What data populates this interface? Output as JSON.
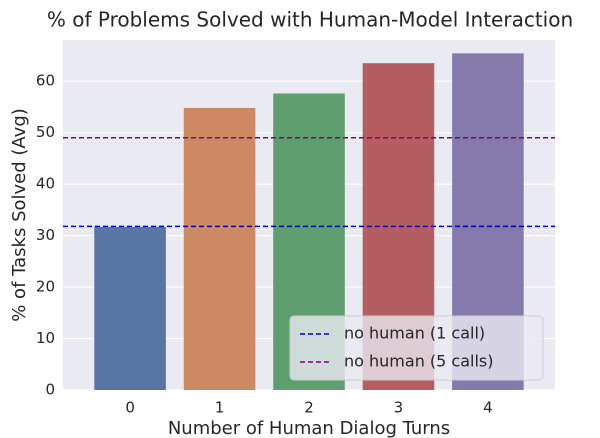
{
  "chart_data": {
    "type": "bar",
    "title": "% of Problems Solved with Human-Model Interaction",
    "xlabel": "Number of Human Dialog Turns",
    "ylabel": "% of Tasks Solved (Avg)",
    "categories": [
      "0",
      "1",
      "2",
      "3",
      "4"
    ],
    "values": [
      31.7,
      54.8,
      57.6,
      63.5,
      65.4
    ],
    "colors": [
      "#5975a4",
      "#cc8963",
      "#5f9e6e",
      "#b55d60",
      "#857aab"
    ],
    "hlines": [
      {
        "name": "no human (1 call)",
        "color": "#0000cc",
        "value": 31.8
      },
      {
        "name": "no human (5 calls)",
        "color": "#800080",
        "value": 49.0
      }
    ],
    "ylim": [
      0,
      68
    ],
    "yticks": [
      0,
      10,
      20,
      30,
      40,
      50,
      60
    ],
    "grid": true,
    "legend": "lower right"
  }
}
